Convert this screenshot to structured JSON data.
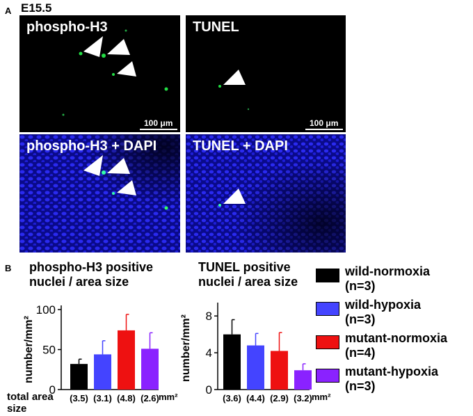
{
  "panel_a": {
    "letter": "A",
    "stage": "E15.5",
    "images": [
      {
        "label": "phospho-H3",
        "scale": "100 μm"
      },
      {
        "label": "TUNEL",
        "scale": "100 μm"
      },
      {
        "label": "phospho-H3 + DAPI"
      },
      {
        "label": "TUNEL + DAPI"
      }
    ]
  },
  "panel_b": {
    "letter": "B",
    "row_label_line1": "total area",
    "row_label_line2": "size",
    "legend": [
      {
        "line1": "wild-normoxia",
        "line2": "(n=3)",
        "color": "#000000"
      },
      {
        "line1": "wild-hypoxia",
        "line2": "(n=3)",
        "color": "#4444ff"
      },
      {
        "line1": "mutant-normoxia",
        "line2": "(n=4)",
        "color": "#ee1111"
      },
      {
        "line1": "mutant-hypoxia",
        "line2": "(n=3)",
        "color": "#8a22ff"
      }
    ]
  },
  "chart_data": [
    {
      "type": "bar",
      "title_line1": "phospho-H3 positive",
      "title_line2": "nuclei / area size",
      "ylabel": "number/mm²",
      "ylim": [
        0,
        100
      ],
      "yticks": [
        "0",
        "50",
        "100"
      ],
      "categories": [
        "wild-normoxia",
        "wild-hypoxia",
        "mutant-normoxia",
        "mutant-hypoxia"
      ],
      "values": [
        32,
        44,
        74,
        51
      ],
      "errors": [
        6,
        17,
        20,
        20
      ],
      "colors": [
        "#000000",
        "#4444ff",
        "#ee1111",
        "#8a22ff"
      ],
      "area_labels": [
        "(3.5)",
        "(3.1)",
        "(4.8)",
        "(2.6)"
      ],
      "area_unit": "mm²"
    },
    {
      "type": "bar",
      "title_line1": "TUNEL positive",
      "title_line2": "nuclei / area size",
      "ylabel": "number/mm²",
      "ylim": [
        0,
        9
      ],
      "yticks": [
        "0",
        "4",
        "8"
      ],
      "categories": [
        "wild-normoxia",
        "wild-hypoxia",
        "mutant-normoxia",
        "mutant-hypoxia"
      ],
      "values": [
        6.0,
        4.8,
        4.2,
        2.1
      ],
      "errors": [
        1.6,
        1.3,
        2.0,
        0.7
      ],
      "colors": [
        "#000000",
        "#4444ff",
        "#ee1111",
        "#8a22ff"
      ],
      "area_labels": [
        "(3.6)",
        "(4.4)",
        "(2.9)",
        "(3.2)"
      ],
      "area_unit": "mm²"
    }
  ]
}
